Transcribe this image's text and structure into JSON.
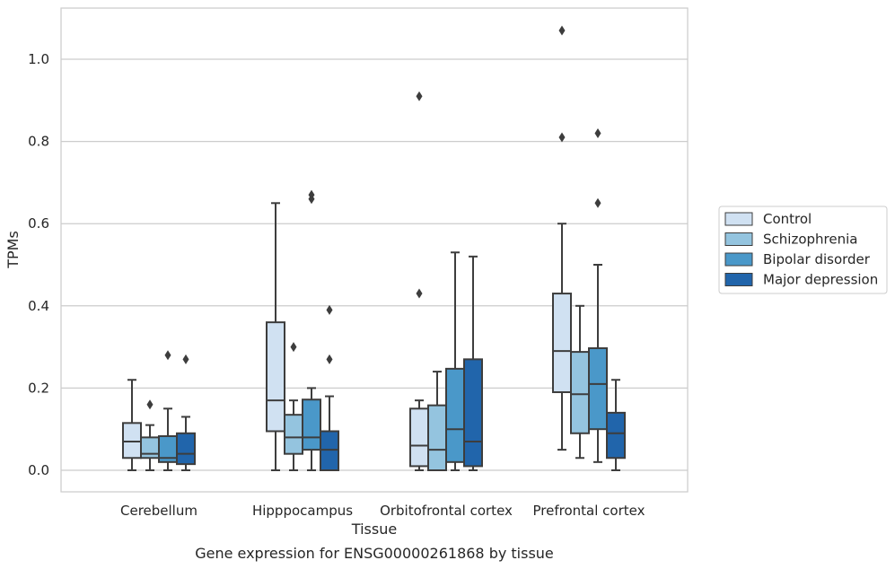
{
  "chart_data": {
    "type": "box",
    "title": "",
    "caption": "Gene expression for ENSG00000261868 by tissue",
    "xlabel": "Tissue",
    "ylabel": "TPMs",
    "ylim": [
      -0.05,
      1.13
    ],
    "yticks": [
      0.0,
      0.2,
      0.4,
      0.6,
      0.8,
      1.0
    ],
    "ytick_labels": [
      "0.0",
      "0.2",
      "0.4",
      "0.6",
      "0.8",
      "1.0"
    ],
    "grid": "horizontal",
    "legend_position": "right",
    "categories": [
      "Cerebellum",
      "Hipppocampus",
      "Orbitofrontal cortex",
      "Prefrontal cortex"
    ],
    "series": [
      {
        "name": "Control",
        "color": "#d0e1f2",
        "boxes": [
          {
            "whislo": 0.0,
            "q1": 0.03,
            "med": 0.07,
            "q3": 0.115,
            "whishi": 0.22,
            "fliers": []
          },
          {
            "whislo": 0.0,
            "q1": 0.095,
            "med": 0.17,
            "q3": 0.36,
            "whishi": 0.65,
            "fliers": []
          },
          {
            "whislo": 0.0,
            "q1": 0.01,
            "med": 0.06,
            "q3": 0.15,
            "whishi": 0.17,
            "fliers": [
              0.43,
              0.91
            ]
          },
          {
            "whislo": 0.05,
            "q1": 0.19,
            "med": 0.29,
            "q3": 0.43,
            "whishi": 0.6,
            "fliers": [
              0.81,
              1.07
            ]
          }
        ]
      },
      {
        "name": "Schizophrenia",
        "color": "#94c4df",
        "boxes": [
          {
            "whislo": 0.0,
            "q1": 0.03,
            "med": 0.04,
            "q3": 0.08,
            "whishi": 0.11,
            "fliers": [
              0.16
            ]
          },
          {
            "whislo": 0.0,
            "q1": 0.04,
            "med": 0.08,
            "q3": 0.135,
            "whishi": 0.17,
            "fliers": [
              0.3
            ]
          },
          {
            "whislo": 0.0,
            "q1": 0.0,
            "med": 0.05,
            "q3": 0.158,
            "whishi": 0.24,
            "fliers": []
          },
          {
            "whislo": 0.03,
            "q1": 0.09,
            "med": 0.185,
            "q3": 0.288,
            "whishi": 0.4,
            "fliers": []
          }
        ]
      },
      {
        "name": "Bipolar disorder",
        "color": "#4a98c9",
        "boxes": [
          {
            "whislo": 0.0,
            "q1": 0.02,
            "med": 0.03,
            "q3": 0.083,
            "whishi": 0.15,
            "fliers": [
              0.28
            ]
          },
          {
            "whislo": 0.0,
            "q1": 0.05,
            "med": 0.08,
            "q3": 0.172,
            "whishi": 0.2,
            "fliers": [
              0.66,
              0.67
            ]
          },
          {
            "whislo": 0.0,
            "q1": 0.02,
            "med": 0.1,
            "q3": 0.247,
            "whishi": 0.53,
            "fliers": []
          },
          {
            "whislo": 0.02,
            "q1": 0.1,
            "med": 0.21,
            "q3": 0.297,
            "whishi": 0.5,
            "fliers": [
              0.65,
              0.82
            ]
          }
        ]
      },
      {
        "name": "Major depression",
        "color": "#2165ab",
        "boxes": [
          {
            "whislo": 0.0,
            "q1": 0.015,
            "med": 0.04,
            "q3": 0.09,
            "whishi": 0.13,
            "fliers": [
              0.27
            ]
          },
          {
            "whislo": 0.0,
            "q1": 0.0,
            "med": 0.05,
            "q3": 0.095,
            "whishi": 0.18,
            "fliers": [
              0.27,
              0.39
            ]
          },
          {
            "whislo": 0.0,
            "q1": 0.01,
            "med": 0.07,
            "q3": 0.27,
            "whishi": 0.52,
            "fliers": []
          },
          {
            "whislo": 0.0,
            "q1": 0.03,
            "med": 0.09,
            "q3": 0.14,
            "whishi": 0.22,
            "fliers": []
          }
        ]
      }
    ]
  }
}
